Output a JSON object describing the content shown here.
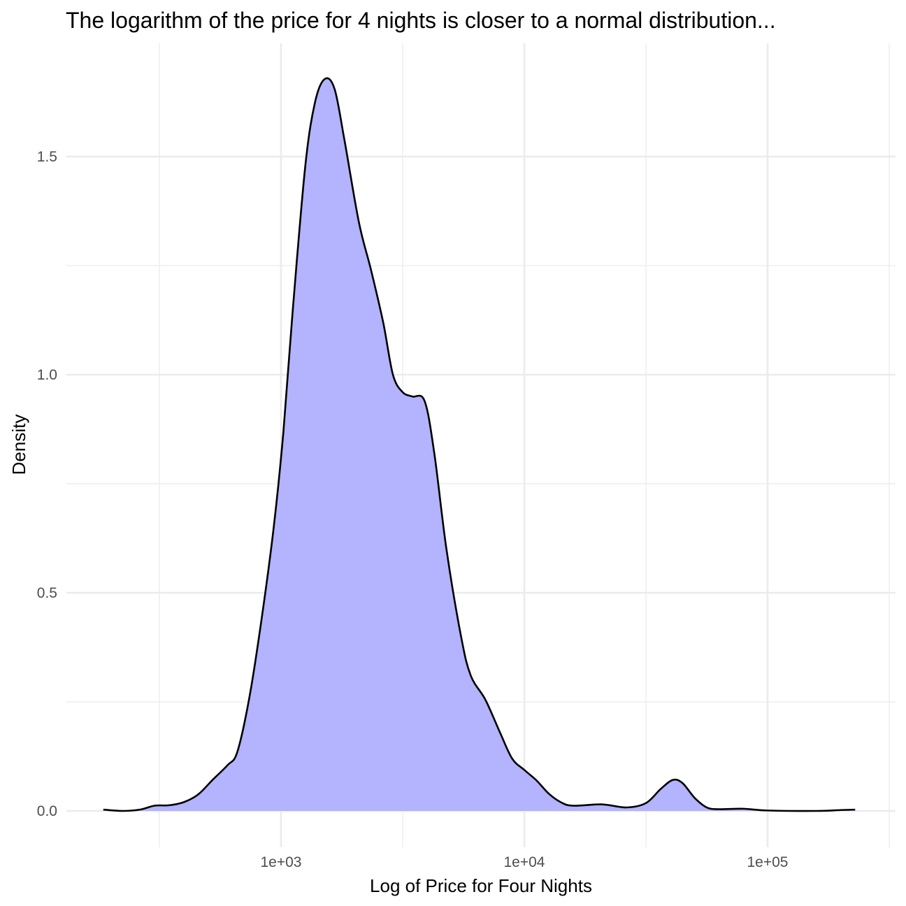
{
  "chart_data": {
    "type": "area",
    "subtype": "density",
    "title": "The logarithm of the price for 4 nights is closer to a normal distribution...",
    "xlabel": "Log of Price for Four Nights",
    "ylabel": "Density",
    "x_scale": "log10",
    "xlim": [
      100,
      300000
    ],
    "ylim": [
      -0.07,
      1.75
    ],
    "x_major_ticks": [
      1000,
      10000,
      100000
    ],
    "x_tick_labels": [
      "1e+03",
      "1e+04",
      "1e+05"
    ],
    "x_minor_ticks": [
      316.2,
      3162.3,
      31622.8,
      316227.8
    ],
    "y_major_ticks": [
      0,
      0.5,
      1.0,
      1.5
    ],
    "y_tick_labels": [
      "0.0",
      "0.5",
      "1.0",
      "1.5"
    ],
    "y_minor_ticks": [
      0.25,
      0.75,
      1.25
    ],
    "grid": true,
    "fill_color": "#b3b3fe",
    "line_color": "#000000",
    "series": [
      {
        "points": [
          [
            186,
            0.003
          ],
          [
            223,
            0.0
          ],
          [
            263,
            0.003
          ],
          [
            302,
            0.012
          ],
          [
            347,
            0.013
          ],
          [
            398,
            0.02
          ],
          [
            457,
            0.038
          ],
          [
            525,
            0.072
          ],
          [
            603,
            0.105
          ],
          [
            661,
            0.135
          ],
          [
            741,
            0.26
          ],
          [
            832,
            0.44
          ],
          [
            933,
            0.65
          ],
          [
            1023,
            0.87
          ],
          [
            1122,
            1.16
          ],
          [
            1259,
            1.48
          ],
          [
            1380,
            1.625
          ],
          [
            1514,
            1.678
          ],
          [
            1660,
            1.655
          ],
          [
            1820,
            1.54
          ],
          [
            2089,
            1.35
          ],
          [
            2344,
            1.24
          ],
          [
            2630,
            1.12
          ],
          [
            2884,
            1.0
          ],
          [
            3162,
            0.96
          ],
          [
            3467,
            0.95
          ],
          [
            3890,
            0.94
          ],
          [
            4266,
            0.82
          ],
          [
            4786,
            0.6
          ],
          [
            5495,
            0.4
          ],
          [
            6026,
            0.31
          ],
          [
            6918,
            0.255
          ],
          [
            7943,
            0.18
          ],
          [
            8913,
            0.12
          ],
          [
            10000,
            0.094
          ],
          [
            11220,
            0.07
          ],
          [
            12589,
            0.04
          ],
          [
            14125,
            0.02
          ],
          [
            15849,
            0.012
          ],
          [
            20893,
            0.015
          ],
          [
            26303,
            0.008
          ],
          [
            31623,
            0.018
          ],
          [
            36308,
            0.05
          ],
          [
            40738,
            0.071
          ],
          [
            44668,
            0.064
          ],
          [
            50119,
            0.03
          ],
          [
            56234,
            0.008
          ],
          [
            63096,
            0.004
          ],
          [
            79433,
            0.005
          ],
          [
            100000,
            0.001
          ],
          [
            158489,
            0.0
          ],
          [
            199526,
            0.002
          ],
          [
            229087,
            0.003
          ]
        ]
      }
    ]
  }
}
